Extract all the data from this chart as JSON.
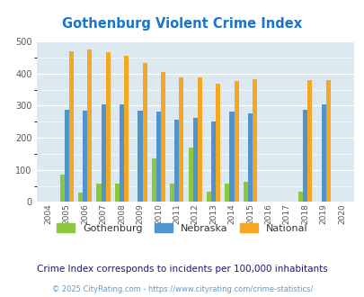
{
  "title": "Gothenburg Violent Crime Index",
  "title_color": "#1874cd",
  "years": [
    2004,
    2005,
    2006,
    2007,
    2008,
    2009,
    2010,
    2011,
    2012,
    2013,
    2014,
    2015,
    2016,
    2017,
    2018,
    2019,
    2020
  ],
  "gothenburg": [
    0,
    84,
    30,
    58,
    57,
    0,
    136,
    58,
    170,
    33,
    58,
    62,
    0,
    0,
    33,
    0,
    0
  ],
  "nebraska": [
    0,
    288,
    285,
    305,
    305,
    285,
    281,
    257,
    262,
    252,
    281,
    275,
    0,
    0,
    288,
    303,
    0
  ],
  "national": [
    0,
    469,
    474,
    467,
    455,
    432,
    405,
    387,
    387,
    368,
    377,
    383,
    0,
    0,
    380,
    379,
    0
  ],
  "gothenburg_color": "#8dc63f",
  "nebraska_color": "#4f94cd",
  "national_color": "#f5a623",
  "bg_color": "#dce9f0",
  "ylim": [
    0,
    500
  ],
  "yticks": [
    0,
    100,
    200,
    300,
    400,
    500
  ],
  "bar_width": 0.25,
  "subtitle": "Crime Index corresponds to incidents per 100,000 inhabitants",
  "subtitle_color": "#1a1a6e",
  "copyright": "© 2025 CityRating.com - https://www.cityrating.com/crime-statistics/",
  "copyright_color": "#5b9bd5"
}
